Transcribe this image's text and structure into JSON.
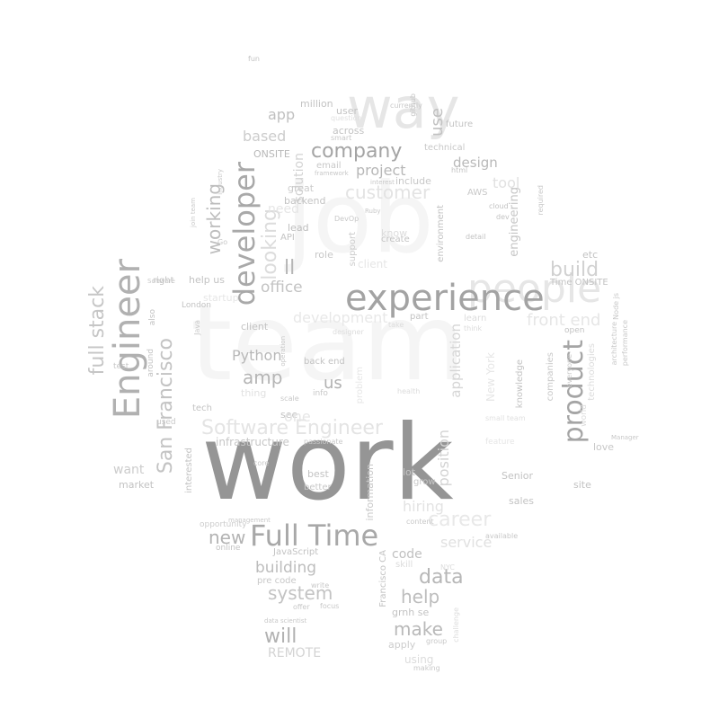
{
  "cloud": {
    "words": [
      {
        "text": "work",
        "color": "#959595"
      },
      {
        "text": "team",
        "color": "#f5f5f5"
      },
      {
        "text": "job",
        "color": "#f5f5f5"
      },
      {
        "text": "experience",
        "color": "#a3a3a3"
      },
      {
        "text": "Engineer",
        "color": "#b1b1b1"
      },
      {
        "text": "Full Time",
        "color": "#a8a8a8"
      },
      {
        "text": "developer",
        "color": "#a9a9a9"
      },
      {
        "text": "product",
        "color": "#a5a5a5"
      },
      {
        "text": "company",
        "color": "#a4a4a4"
      },
      {
        "text": "Software Engineer",
        "color": "#e4e4e4"
      },
      {
        "text": "San Francisco",
        "color": "#c3c3c3"
      },
      {
        "text": "full stack",
        "color": "#c6c6c6"
      },
      {
        "text": "working",
        "color": "#bdbdbd"
      },
      {
        "text": "looking",
        "color": "#dcdcdc"
      },
      {
        "text": "ll",
        "color": "#b5b5b5"
      },
      {
        "text": "office",
        "color": "#c3c3c3"
      },
      {
        "text": "build",
        "color": "#d1d1d1"
      },
      {
        "text": "front end",
        "color": "#e6e6e6"
      },
      {
        "text": "data",
        "color": "#b7b7b7"
      },
      {
        "text": "help",
        "color": "#bdbdbd"
      },
      {
        "text": "make",
        "color": "#b9b9b9"
      },
      {
        "text": "will",
        "color": "#b2b2b2"
      },
      {
        "text": "system",
        "color": "#c3c3c3"
      },
      {
        "text": "building",
        "color": "#bdbdbd"
      },
      {
        "text": "new",
        "color": "#b3b3b3"
      },
      {
        "text": "amp",
        "color": "#b5b5b5"
      },
      {
        "text": "us",
        "color": "#b1b1b1"
      },
      {
        "text": "Python",
        "color": "#b8b8b8"
      },
      {
        "text": "project",
        "color": "#b7b7b7"
      },
      {
        "text": "design",
        "color": "#b9b9b9"
      },
      {
        "text": "use",
        "color": "#c1c1c1"
      },
      {
        "text": "app",
        "color": "#c0c0c0"
      },
      {
        "text": "based",
        "color": "#cccccc"
      },
      {
        "text": "customer",
        "color": "#e3e3e3"
      },
      {
        "text": "tool",
        "color": "#e1e1e1"
      },
      {
        "text": "career",
        "color": "#e8e8e8"
      },
      {
        "text": "service",
        "color": "#e1e1e1"
      },
      {
        "text": "REMOTE",
        "color": "#d3d3d3"
      },
      {
        "text": "code",
        "color": "#c0c0c0"
      },
      {
        "text": "want",
        "color": "#cccccc"
      },
      {
        "text": "engineering",
        "color": "#c6c6c6"
      },
      {
        "text": "position",
        "color": "#d3d3d3"
      },
      {
        "text": "application",
        "color": "#d6d6d6"
      },
      {
        "text": "solution",
        "color": "#d3d3d3"
      },
      {
        "text": "development",
        "color": "#e8e8e8"
      },
      {
        "text": "hiring",
        "color": "#e3e3e3"
      },
      {
        "text": "infrastructure",
        "color": "#c6c6c6"
      },
      {
        "text": "user",
        "color": "#c3c3c3"
      },
      {
        "text": "across",
        "color": "#c3c3c3"
      },
      {
        "text": "million",
        "color": "#c3c3c3"
      },
      {
        "text": "ONSITE",
        "color": "#b8b8b8"
      },
      {
        "text": "email",
        "color": "#c8c8c8"
      },
      {
        "text": "include",
        "color": "#c8c8c8"
      },
      {
        "text": "technical",
        "color": "#c8c8c8"
      },
      {
        "text": "great",
        "color": "#cccccc"
      },
      {
        "text": "backend",
        "color": "#c3c3c3"
      },
      {
        "text": "lead",
        "color": "#bdbdbd"
      },
      {
        "text": "role",
        "color": "#c8c8c8"
      },
      {
        "text": "API",
        "color": "#c3c3c3"
      },
      {
        "text": "create",
        "color": "#c3c3c3"
      },
      {
        "text": "know",
        "color": "#dcdcdc"
      },
      {
        "text": "support",
        "color": "#cccccc"
      },
      {
        "text": "environment",
        "color": "#c3c3c3"
      },
      {
        "text": "AWS",
        "color": "#c8c8c8"
      },
      {
        "text": "future",
        "color": "#c3c3c3"
      },
      {
        "text": "etc",
        "color": "#c3c3c3"
      },
      {
        "text": "Time ONSITE",
        "color": "#c3c3c3"
      },
      {
        "text": "client",
        "color": "#c3c3c3"
      },
      {
        "text": "back end",
        "color": "#c3c3c3"
      },
      {
        "text": "info",
        "color": "#c8c8c8"
      },
      {
        "text": "see",
        "color": "#c3c3c3"
      },
      {
        "text": "best",
        "color": "#c3c3c3"
      },
      {
        "text": "better",
        "color": "#c8c8c8"
      },
      {
        "text": "lot",
        "color": "#c3c3c3"
      },
      {
        "text": "grow",
        "color": "#c8c8c8"
      },
      {
        "text": "Senior",
        "color": "#c3c3c3"
      },
      {
        "text": "sales",
        "color": "#c3c3c3"
      },
      {
        "text": "site",
        "color": "#c3c3c3"
      },
      {
        "text": "love",
        "color": "#c8c8c8"
      },
      {
        "text": "market",
        "color": "#c3c3c3"
      },
      {
        "text": "interested",
        "color": "#c3c3c3"
      },
      {
        "text": "opportunity",
        "color": "#cccccc"
      },
      {
        "text": "online",
        "color": "#c3c3c3"
      },
      {
        "text": "JavaScript",
        "color": "#c3c3c3"
      },
      {
        "text": "pre code",
        "color": "#c8c8c8"
      },
      {
        "text": "Francisco CA",
        "color": "#c3c3c3"
      },
      {
        "text": "grnh se",
        "color": "#c3c3c3"
      },
      {
        "text": "apply",
        "color": "#cccccc"
      },
      {
        "text": "using",
        "color": "#dcdcdc"
      },
      {
        "text": "making",
        "color": "#c8c8c8"
      },
      {
        "text": "information",
        "color": "#c8c8c8"
      },
      {
        "text": "knowledge",
        "color": "#c3c3c3"
      },
      {
        "text": "companies",
        "color": "#c8c8c8"
      },
      {
        "text": "open",
        "color": "#c3c3c3"
      },
      {
        "text": "London",
        "color": "#c3c3c3"
      },
      {
        "text": "help us",
        "color": "#c3c3c3"
      },
      {
        "text": "right",
        "color": "#c3c3c3"
      },
      {
        "text": "also",
        "color": "#c3c3c3"
      },
      {
        "text": "around",
        "color": "#c3c3c3"
      },
      {
        "text": "test",
        "color": "#c8c8c8"
      },
      {
        "text": "used",
        "color": "#c8c8c8"
      },
      {
        "text": "tech",
        "color": "#c3c3c3"
      },
      {
        "text": "thing",
        "color": "#e1e1e1"
      },
      {
        "text": "currently",
        "color": "#c8c8c8"
      },
      {
        "text": "github",
        "color": "#c3c3c3"
      },
      {
        "text": "fun",
        "color": "#c3c3c3"
      },
      {
        "text": "smart",
        "color": "#c8c8c8"
      },
      {
        "text": "question",
        "color": "#e1e1e1"
      },
      {
        "text": "html",
        "color": "#c3c3c3"
      },
      {
        "text": "cloud",
        "color": "#c3c3c3"
      },
      {
        "text": "dev",
        "color": "#c3c3c3"
      },
      {
        "text": "detail",
        "color": "#c3c3c3"
      },
      {
        "text": "scale",
        "color": "#c8c8c8"
      },
      {
        "text": "content",
        "color": "#c8c8c8"
      },
      {
        "text": "offer",
        "color": "#c8c8c8"
      },
      {
        "text": "focus",
        "color": "#c8c8c8"
      },
      {
        "text": "write",
        "color": "#c8c8c8"
      },
      {
        "text": "Manager",
        "color": "#c8c8c8"
      },
      {
        "text": "available",
        "color": "#c8c8c8"
      },
      {
        "text": "passionate",
        "color": "#c8c8c8"
      },
      {
        "text": "DevOp",
        "color": "#c8c8c8"
      },
      {
        "text": "join team",
        "color": "#c8c8c8"
      },
      {
        "text": "Go",
        "color": "#c8c8c8"
      },
      {
        "text": "Java",
        "color": "#c8c8c8"
      },
      {
        "text": "designer",
        "color": "#dcdcdc"
      },
      {
        "text": "take",
        "color": "#dcdcdc"
      },
      {
        "text": "part",
        "color": "#c3c3c3"
      },
      {
        "text": "learn",
        "color": "#dcdcdc"
      },
      {
        "text": "think",
        "color": "#dcdcdc"
      },
      {
        "text": "health",
        "color": "#dcdcdc"
      },
      {
        "text": "problem",
        "color": "#e6e6e6"
      },
      {
        "text": "New York",
        "color": "#e6e6e6"
      },
      {
        "text": "technologies",
        "color": "#dcdcdc"
      },
      {
        "text": "everyone",
        "color": "#c8c8c8"
      },
      {
        "text": "architecture",
        "color": "#c8c8c8"
      },
      {
        "text": "performance",
        "color": "#c8c8c8"
      },
      {
        "text": "world",
        "color": "#dcdcdc"
      },
      {
        "text": "small team",
        "color": "#e1e1e1"
      },
      {
        "text": "feature",
        "color": "#e6e6e6"
      },
      {
        "text": "required",
        "color": "#c8c8c8"
      },
      {
        "text": "Node js",
        "color": "#c8c8c8"
      },
      {
        "text": "framework",
        "color": "#c8c8c8"
      },
      {
        "text": "interest",
        "color": "#c8c8c8"
      },
      {
        "text": "startup",
        "color": "#e6e6e6"
      },
      {
        "text": "operation",
        "color": "#c8c8c8"
      },
      {
        "text": "core",
        "color": "#c8c8c8"
      },
      {
        "text": "management",
        "color": "#c8c8c8"
      },
      {
        "text": "skill",
        "color": "#dcdcdc"
      },
      {
        "text": "NYC",
        "color": "#dcdcdc"
      },
      {
        "text": "challenge",
        "color": "#dcdcdc"
      },
      {
        "text": "group",
        "color": "#c8c8c8"
      },
      {
        "text": "data scientist",
        "color": "#c8c8c8"
      },
      {
        "text": "Ruby",
        "color": "#c8c8c8"
      },
      {
        "text": "industry",
        "color": "#c8c8c8"
      },
      {
        "text": "Software",
        "color": "#c8c8c8"
      },
      {
        "text": "need",
        "color": "#e6e6e6"
      },
      {
        "text": "people",
        "color": "#e6e6e6"
      },
      {
        "text": "one",
        "color": "#e6e6e6"
      },
      {
        "text": "way",
        "color": "#e6e6e6"
      },
      {
        "text": "client",
        "color": "#e6e6e6"
      }
    ]
  }
}
